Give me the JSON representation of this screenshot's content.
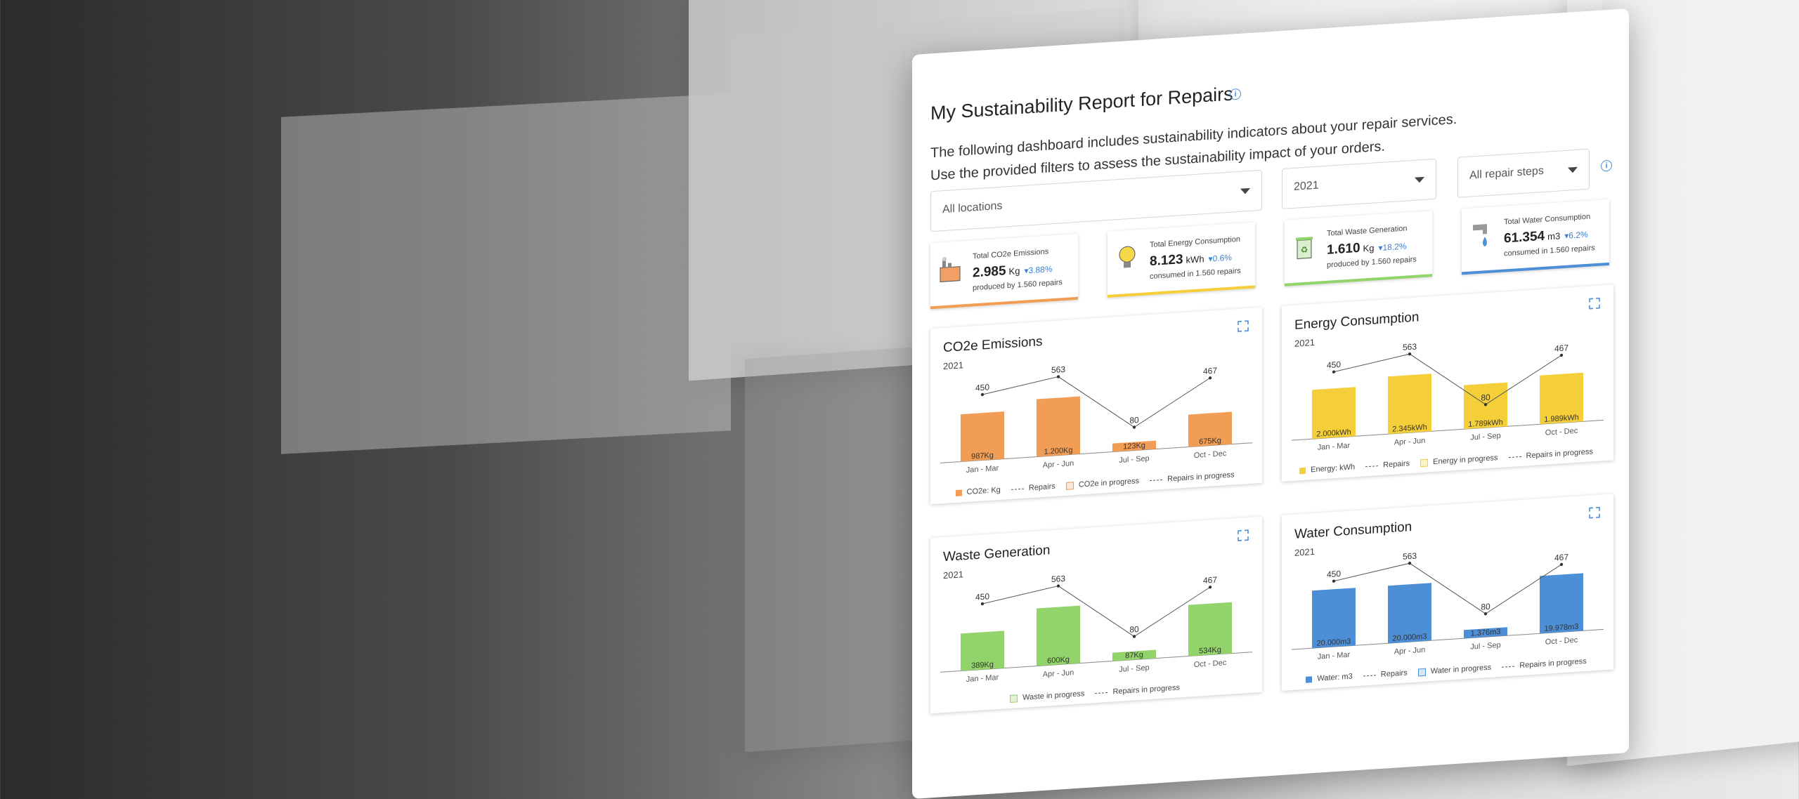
{
  "header": {
    "title": "My Sustainability Report for Repairs",
    "description_line1": "The following dashboard includes sustainability indicators about your repair services.",
    "description_line2": "Use the provided filters to assess the sustainability impact of your orders."
  },
  "filters": {
    "location": "All locations",
    "year": "2021",
    "steps": "All repair steps"
  },
  "colors": {
    "co2": "#f29d55",
    "energy": "#f5cf3a",
    "waste": "#93d36b",
    "water": "#4d8fd6"
  },
  "kpis": [
    {
      "label": "Total CO2e Emissions",
      "value": "2.985",
      "unit": "Kg",
      "delta": "3.88%",
      "sub": "produced by 1.560 repairs",
      "icon": "factory-icon"
    },
    {
      "label": "Total Energy Consumption",
      "value": "8.123",
      "unit": "kWh",
      "delta": "0.6%",
      "sub": "consumed in 1.560 repairs",
      "icon": "lightbulb-icon"
    },
    {
      "label": "Total Waste Generation",
      "value": "1.610",
      "unit": "Kg",
      "delta": "18.2%",
      "sub": "produced by 1.560 repairs",
      "icon": "recycle-bin-icon"
    },
    {
      "label": "Total Water Consumption",
      "value": "61.354",
      "unit": "m3",
      "delta": "6.2%",
      "sub": "consumed in 1.560 repairs",
      "icon": "water-tap-icon"
    }
  ],
  "chart_data": [
    {
      "type": "bar",
      "title": "CO2e Emissions",
      "subtitle": "2021",
      "categories": [
        "Jan - Mar",
        "Apr - Jun",
        "Jul - Sep",
        "Oct - Dec"
      ],
      "series": [
        {
          "name": "CO2e: Kg",
          "values": [
            987,
            1200,
            123,
            675
          ],
          "labels": [
            "987Kg",
            "1.200Kg",
            "123Kg",
            "675Kg"
          ]
        },
        {
          "name": "Repairs",
          "values": [
            450,
            563,
            80,
            467
          ]
        }
      ],
      "legend": [
        "CO2e: Kg",
        "Repairs",
        "CO2e in progress",
        "Repairs in progress"
      ]
    },
    {
      "type": "bar",
      "title": "Energy Consumption",
      "subtitle": "2021",
      "categories": [
        "Jan - Mar",
        "Apr - Jun",
        "Jul - Sep",
        "Oct - Dec"
      ],
      "series": [
        {
          "name": "Energy: kWh",
          "values": [
            2000,
            2345,
            1789,
            1989
          ],
          "labels": [
            "2.000kWh",
            "2.345kWh",
            "1.789kWh",
            "1.989kWh"
          ]
        },
        {
          "name": "Repairs",
          "values": [
            450,
            563,
            80,
            467
          ]
        }
      ],
      "legend": [
        "Energy: kWh",
        "Repairs",
        "Energy in progress",
        "Repairs in progress"
      ]
    },
    {
      "type": "bar",
      "title": "Waste Generation",
      "subtitle": "2021",
      "categories": [
        "Jan - Mar",
        "Apr - Jun",
        "Jul - Sep",
        "Oct - Dec"
      ],
      "series": [
        {
          "name": "Waste",
          "values": [
            389,
            600,
            87,
            534
          ],
          "labels": [
            "389Kg",
            "600Kg",
            "87Kg",
            "534Kg"
          ]
        },
        {
          "name": "Repairs",
          "values": [
            450,
            563,
            80,
            467
          ]
        }
      ],
      "legend": [
        "Waste in progress",
        "Repairs in progress"
      ]
    },
    {
      "type": "bar",
      "title": "Water Consumption",
      "subtitle": "2021",
      "categories": [
        "Jan - Mar",
        "Apr - Jun",
        "Jul - Sep",
        "Oct - Dec"
      ],
      "series": [
        {
          "name": "Water: m3",
          "values": [
            20000,
            20000,
            1376,
            19978
          ],
          "labels": [
            "20.000m3",
            "20.000m3",
            "1.376m3",
            "19.978m3"
          ]
        },
        {
          "name": "Repairs",
          "values": [
            450,
            563,
            80,
            467
          ]
        }
      ],
      "legend": [
        "Water: m3",
        "Repairs",
        "Water in progress",
        "Repairs in progress"
      ]
    }
  ]
}
